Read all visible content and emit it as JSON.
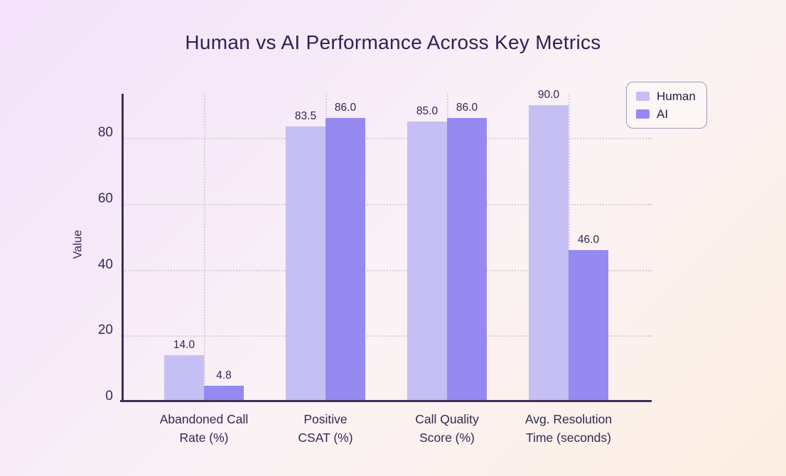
{
  "title": "Human vs AI Performance Across Key Metrics",
  "chart_data": {
    "type": "bar",
    "title": "Human vs AI Performance Across Key Metrics",
    "categories": [
      "Abandoned Call\nRate (%)",
      "Positive\nCSAT (%)",
      "Call Quality\nScore (%)",
      "Avg. Resolution\nTime (seconds)"
    ],
    "series": [
      {
        "name": "Human",
        "color": "#c6bff4",
        "values": [
          14.0,
          83.5,
          85.0,
          90.0
        ],
        "labels": [
          "14.0",
          "83.5",
          "85.0",
          "90.0"
        ]
      },
      {
        "name": "AI",
        "color": "#9689f0",
        "values": [
          4.8,
          86.0,
          86.0,
          46.0
        ],
        "labels": [
          "4.8",
          "86.0",
          "86.0",
          "46.0"
        ]
      }
    ],
    "xlabel": "",
    "ylabel": "Value",
    "yticks": [
      0,
      20,
      40,
      60,
      80
    ],
    "ylim": [
      0,
      93.4
    ],
    "grid": "dotted horizontal and vertical gridlines",
    "legend_position": "top-right"
  },
  "colors": {
    "axis": "#3a3157",
    "grid": "#d7ced7",
    "text": "#2e2851",
    "background_top_left": "#f4e2fb",
    "background_bottom_right": "#fdeee2",
    "human_bar": "#c6bff4",
    "ai_bar": "#9689f0"
  }
}
